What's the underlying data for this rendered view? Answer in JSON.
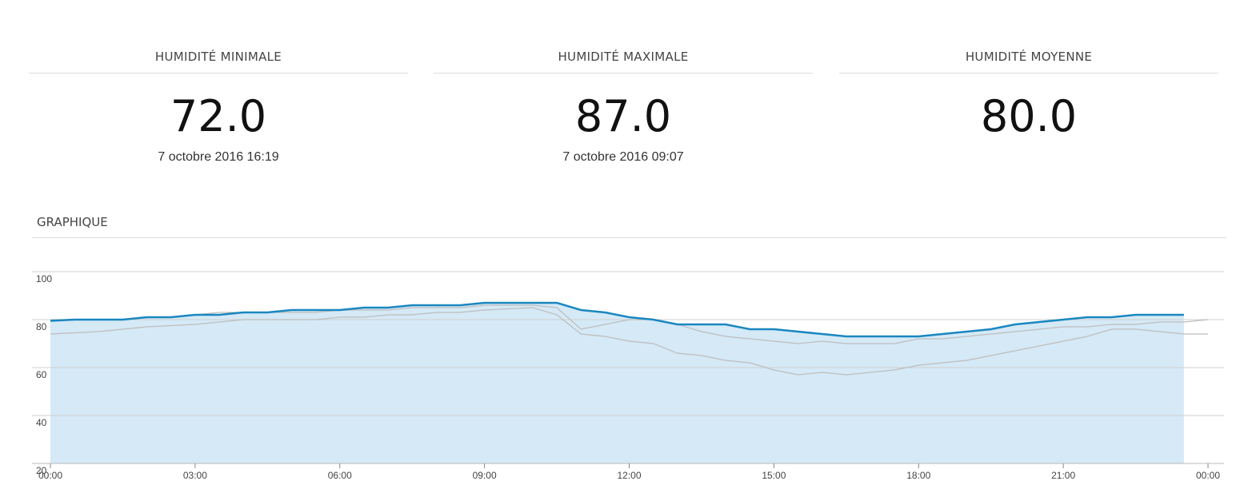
{
  "cards": [
    {
      "title": "HUMIDITÉ MINIMALE",
      "value": "72.0",
      "date": "7 octobre 2016 16:19"
    },
    {
      "title": "HUMIDITÉ MAXIMALE",
      "value": "87.0",
      "date": "7 octobre 2016 09:07"
    },
    {
      "title": "HUMIDITÉ MOYENNE",
      "value": "80.0"
    }
  ],
  "section_title": "GRAPHIQUE",
  "chart_data": {
    "type": "line",
    "x": [
      0,
      0.5,
      1,
      1.5,
      2,
      2.5,
      3,
      3.5,
      4,
      4.5,
      5,
      5.5,
      6,
      6.5,
      7,
      7.5,
      8,
      8.5,
      9,
      9.5,
      10,
      10.5,
      11,
      11.5,
      12,
      12.5,
      13,
      13.5,
      14,
      14.5,
      15,
      15.5,
      16,
      16.5,
      17,
      17.5,
      18,
      18.5,
      19,
      19.5,
      20,
      20.5,
      21,
      21.5,
      22,
      22.5,
      23,
      23.5,
      24
    ],
    "series": [
      {
        "color": "#bdbdbd",
        "values": [
          74,
          74.5,
          75,
          76,
          77,
          77.5,
          78,
          79,
          80,
          80,
          80,
          80,
          81,
          81,
          82,
          82,
          83,
          83,
          84,
          84.5,
          85,
          82,
          74,
          73,
          71,
          70,
          66,
          65,
          63,
          62,
          59,
          57,
          58,
          57,
          58,
          59,
          61,
          62,
          63,
          65,
          67,
          69,
          71,
          73,
          76,
          76,
          75,
          74,
          74
        ]
      },
      {
        "color": "#bdbdbd",
        "values": [
          80,
          80,
          80,
          80,
          81,
          81,
          82,
          83,
          83,
          83,
          83,
          83,
          84,
          84,
          84,
          85,
          85,
          85,
          86,
          86,
          86,
          85,
          76,
          78,
          80,
          80,
          78,
          75,
          73,
          72,
          71,
          70,
          71,
          70,
          70,
          70,
          72,
          72,
          73,
          74,
          75,
          76,
          77,
          77,
          78,
          78,
          79,
          79,
          80
        ]
      },
      {
        "color": "#1a87c0",
        "fill": "#d5e9f6",
        "values": [
          79.5,
          80,
          80,
          80,
          81,
          81,
          82,
          82,
          83,
          83,
          84,
          84,
          84,
          85,
          85,
          86,
          86,
          86,
          87,
          87,
          87,
          87,
          84,
          83,
          81,
          80,
          78,
          78,
          78,
          76,
          76,
          75,
          74,
          73,
          73,
          73,
          73,
          74,
          75,
          76,
          78,
          79,
          80,
          81,
          81,
          82,
          82,
          82,
          null
        ]
      }
    ],
    "xlim": [
      0,
      24
    ],
    "ylim": [
      20,
      100
    ],
    "xticks": [
      {
        "value": 0,
        "label": "00:00"
      },
      {
        "value": 3,
        "label": "03:00"
      },
      {
        "value": 6,
        "label": "06:00"
      },
      {
        "value": 9,
        "label": "09:00"
      },
      {
        "value": 12,
        "label": "12:00"
      },
      {
        "value": 15,
        "label": "15:00"
      },
      {
        "value": 18,
        "label": "18:00"
      },
      {
        "value": 21,
        "label": "21:00"
      },
      {
        "value": 24,
        "label": "00:00"
      }
    ],
    "yticks": [
      20,
      40,
      60,
      80,
      100
    ],
    "grid": true
  }
}
